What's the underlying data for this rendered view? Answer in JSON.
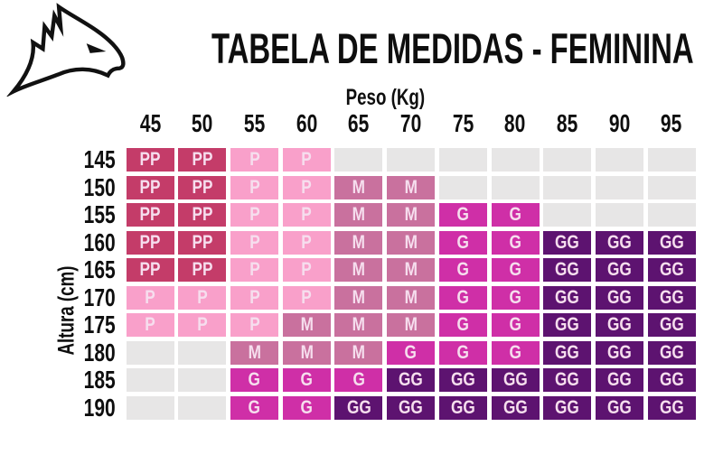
{
  "title": "TABELA DE MEDIDAS - FEMININA",
  "logo": {
    "icon": "eagle-head-icon"
  },
  "chart_data": {
    "type": "heatmap",
    "title": "TABELA DE MEDIDAS - FEMININA",
    "xlabel": "Peso (Kg)",
    "ylabel": "Altura (cm)",
    "columns": [
      "45",
      "50",
      "55",
      "60",
      "65",
      "70",
      "75",
      "80",
      "85",
      "90",
      "95"
    ],
    "rows": [
      "145",
      "150",
      "155",
      "160",
      "165",
      "170",
      "175",
      "180",
      "185",
      "190"
    ],
    "cells": [
      [
        "PP",
        "PP",
        "P",
        "P",
        "",
        "",
        "",
        "",
        "",
        "",
        ""
      ],
      [
        "PP",
        "PP",
        "P",
        "P",
        "M",
        "M",
        "",
        "",
        "",
        "",
        ""
      ],
      [
        "PP",
        "PP",
        "P",
        "P",
        "M",
        "M",
        "G",
        "G",
        "",
        "",
        ""
      ],
      [
        "PP",
        "PP",
        "P",
        "P",
        "M",
        "M",
        "G",
        "G",
        "GG",
        "GG",
        "GG"
      ],
      [
        "PP",
        "PP",
        "P",
        "P",
        "M",
        "M",
        "G",
        "G",
        "GG",
        "GG",
        "GG"
      ],
      [
        "P",
        "P",
        "P",
        "P",
        "M",
        "M",
        "G",
        "G",
        "GG",
        "GG",
        "GG"
      ],
      [
        "P",
        "P",
        "P",
        "M",
        "M",
        "M",
        "G",
        "G",
        "GG",
        "GG",
        "GG"
      ],
      [
        "",
        "",
        "M",
        "M",
        "M",
        "G",
        "G",
        "G",
        "GG",
        "GG",
        "GG"
      ],
      [
        "",
        "",
        "G",
        "G",
        "G",
        "GG",
        "GG",
        "GG",
        "GG",
        "GG",
        "GG"
      ],
      [
        "",
        "",
        "G",
        "G",
        "GG",
        "GG",
        "GG",
        "GG",
        "GG",
        "GG",
        "GG"
      ]
    ],
    "size_colors": {
      "PP": "#C43C69",
      "P": "#F9A0CA",
      "M": "#C9719E",
      "G": "#CF2FA7",
      "GG": "#5D1370"
    },
    "empty_color": "#E7E6E6",
    "cell_text_color": "#F6DEEE",
    "text_color": "#0E0E0E",
    "legend_position": "none",
    "grid": false
  }
}
